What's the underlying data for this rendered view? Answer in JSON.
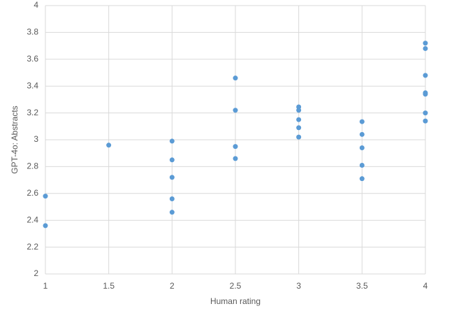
{
  "chart_data": {
    "type": "scatter",
    "x_label": "Human rating",
    "y_label": "GPT-4o: Abstracts",
    "series": [
      {
        "color": "#5b9bd5",
        "x": [
          1,
          1,
          1.5,
          2,
          2,
          2,
          2,
          2,
          2.5,
          2.5,
          2.5,
          2.5,
          3,
          3,
          3,
          3,
          3,
          3.5,
          3.5,
          3.5,
          3.5,
          3.5,
          4,
          4,
          4,
          4,
          4,
          4,
          4
        ],
        "values": [
          2.58,
          2.36,
          2.96,
          2.99,
          2.85,
          2.72,
          2.56,
          2.46,
          3.46,
          3.22,
          2.95,
          2.86,
          3.245,
          3.22,
          3.15,
          3.09,
          3.02,
          3.135,
          3.04,
          2.94,
          2.81,
          2.71,
          3.72,
          3.68,
          3.48,
          3.35,
          3.34,
          3.2,
          3.14
        ]
      }
    ],
    "xlim": [
      1,
      4
    ],
    "xticks": [
      1,
      1.5,
      2,
      2.5,
      3,
      3.5,
      4
    ],
    "ylim": [
      2,
      4
    ],
    "yticks": [
      2,
      2.2,
      2.4,
      2.6,
      2.8,
      3,
      3.2,
      3.4,
      3.6,
      3.8,
      4
    ],
    "grid": true
  }
}
